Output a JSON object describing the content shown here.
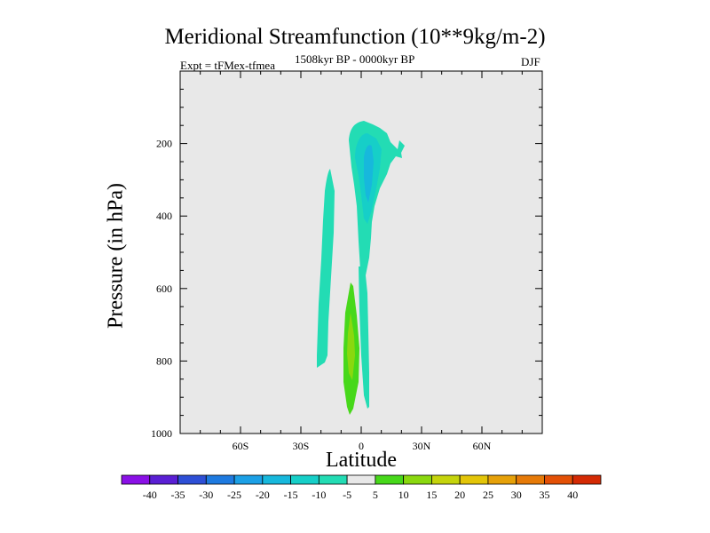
{
  "chart_data": {
    "type": "contour",
    "title": "Meridional Streamfunction (10**9kg/m-2)",
    "subtitle_left": "Expt = tFMex-tfmea",
    "subtitle_center": "1508kyr BP - 0000kyr BP",
    "subtitle_right": "DJF",
    "xlabel": "Latitude",
    "ylabel": "Pressure (in hPa)",
    "xlim": [
      -90,
      90
    ],
    "ylim": [
      1000,
      0
    ],
    "y_reversed": true,
    "x_ticks": [
      {
        "value": -60,
        "label": "60S"
      },
      {
        "value": -30,
        "label": "30S"
      },
      {
        "value": 0,
        "label": "0"
      },
      {
        "value": 30,
        "label": "30N"
      },
      {
        "value": 60,
        "label": "60N"
      }
    ],
    "y_ticks": [
      200,
      400,
      600,
      800,
      1000
    ],
    "background_color": "#e8e8e8",
    "colorbar": {
      "levels": [
        -40,
        -35,
        -30,
        -25,
        -20,
        -15,
        -10,
        -5,
        5,
        10,
        15,
        20,
        25,
        30,
        35,
        40
      ],
      "colors": [
        "#8a10e6",
        "#5a1fd4",
        "#2e4fd6",
        "#1e7ae0",
        "#1ca0e6",
        "#17b8dc",
        "#16cfc8",
        "#23dcb4",
        "#e8e8e8",
        "#47d81a",
        "#8ad80f",
        "#c5d40c",
        "#e3c508",
        "#e6a109",
        "#e67a08",
        "#e35006",
        "#d42a04"
      ]
    },
    "features": [
      {
        "name": "upper-tropical-cell",
        "range": "-5 to -10",
        "lat_range": [
          -6,
          20
        ],
        "pressure_range": [
          140,
          460
        ],
        "core": "-15 to -20 near 2N, 220-320 hPa"
      },
      {
        "name": "southern-vertical-band",
        "range": "-5 to -10",
        "lat_range": [
          -22,
          -14
        ],
        "pressure_range": [
          270,
          820
        ]
      },
      {
        "name": "equatorial-vertical-band",
        "range": "-5 to -10",
        "lat_range": [
          0,
          6
        ],
        "pressure_range": [
          300,
          925
        ]
      },
      {
        "name": "lower-positive-cell",
        "range": "5 to 10",
        "lat_range": [
          -9,
          0
        ],
        "pressure_range": [
          575,
          945
        ],
        "core": "10 to 15 near 4S, 780 hPa"
      }
    ]
  }
}
